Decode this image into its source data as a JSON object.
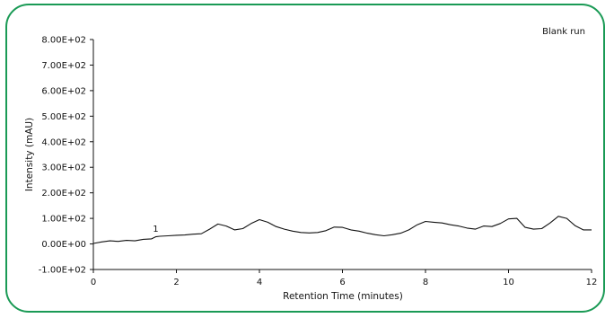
{
  "chart_data": {
    "type": "line",
    "annotation": "Blank run",
    "xlabel": "Retention Time (minutes)",
    "ylabel": "Intensity (mAU)",
    "xlim": [
      0,
      12
    ],
    "ylim": [
      -100,
      800
    ],
    "x_ticks": [
      0,
      2,
      4,
      6,
      8,
      10,
      12
    ],
    "x_tick_labels": [
      "0",
      "2",
      "4",
      "6",
      "8",
      "10",
      "12"
    ],
    "y_ticks": [
      -100,
      0,
      100,
      200,
      300,
      400,
      500,
      600,
      700,
      800
    ],
    "y_tick_labels": [
      "-1.00E+02",
      "0.00E+00",
      "1.00E+02",
      "2.00E+02",
      "3.00E+02",
      "4.00E+02",
      "5.00E+02",
      "6.00E+02",
      "7.00E+02",
      "8.00E+02"
    ],
    "peak_label": {
      "text": "1",
      "x": 1.5,
      "y": 30
    },
    "grid": false,
    "line_color": "#111111",
    "frame_color": "#1a9a55",
    "series": [
      {
        "x": [
          0,
          0.2,
          0.4,
          0.6,
          0.8,
          1.0,
          1.2,
          1.4,
          1.5,
          1.6,
          1.8,
          2.0,
          2.2,
          2.4,
          2.6,
          2.8,
          3.0,
          3.2,
          3.4,
          3.6,
          3.8,
          4.0,
          4.2,
          4.4,
          4.6,
          4.8,
          5.0,
          5.2,
          5.4,
          5.6,
          5.8,
          6.0,
          6.2,
          6.4,
          6.6,
          6.8,
          7.0,
          7.2,
          7.4,
          7.6,
          7.8,
          8.0,
          8.2,
          8.4,
          8.6,
          8.8,
          9.0,
          9.2,
          9.4,
          9.6,
          9.8,
          10.0,
          10.2,
          10.4,
          10.6,
          10.8,
          11.0,
          11.2,
          11.4,
          11.6,
          11.8,
          12.0
        ],
        "y": [
          2,
          8,
          12,
          10,
          14,
          12,
          18,
          20,
          28,
          30,
          32,
          34,
          35,
          38,
          40,
          58,
          78,
          70,
          55,
          60,
          80,
          95,
          85,
          68,
          58,
          50,
          45,
          43,
          45,
          52,
          66,
          65,
          55,
          50,
          42,
          36,
          32,
          36,
          42,
          55,
          75,
          88,
          85,
          82,
          75,
          70,
          62,
          58,
          70,
          68,
          80,
          98,
          100,
          65,
          58,
          60,
          82,
          108,
          100,
          72,
          55,
          55
        ]
      }
    ]
  }
}
